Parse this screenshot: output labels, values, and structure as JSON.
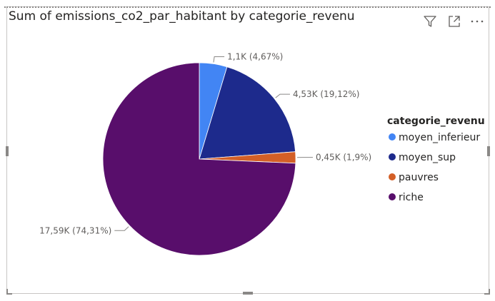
{
  "visual": {
    "title": "Sum of emissions_co2_par_habitant by categorie_revenu",
    "header_icons": [
      "filter-icon",
      "focus-mode-icon",
      "more-options-icon"
    ]
  },
  "chart_data": {
    "type": "pie",
    "title": "Sum of emissions_co2_par_habitant by categorie_revenu",
    "legend_title": "categorie_revenu",
    "legend_position": "right",
    "slices": [
      {
        "name": "moyen_inferieur",
        "value": 1.1,
        "label": "1,1K (4,67%)",
        "percent": 4.67,
        "color": "#4285f4"
      },
      {
        "name": "moyen_sup",
        "value": 4.53,
        "label": "4,53K (19,12%)",
        "percent": 19.12,
        "color": "#1d2a8c"
      },
      {
        "name": "pauvres",
        "value": 0.45,
        "label": "0,45K (1,9%)",
        "percent": 1.9,
        "color": "#d35f27"
      },
      {
        "name": "riche",
        "value": 17.59,
        "label": "17,59K (74,31%)",
        "percent": 74.31,
        "color": "#580e6b"
      }
    ]
  }
}
